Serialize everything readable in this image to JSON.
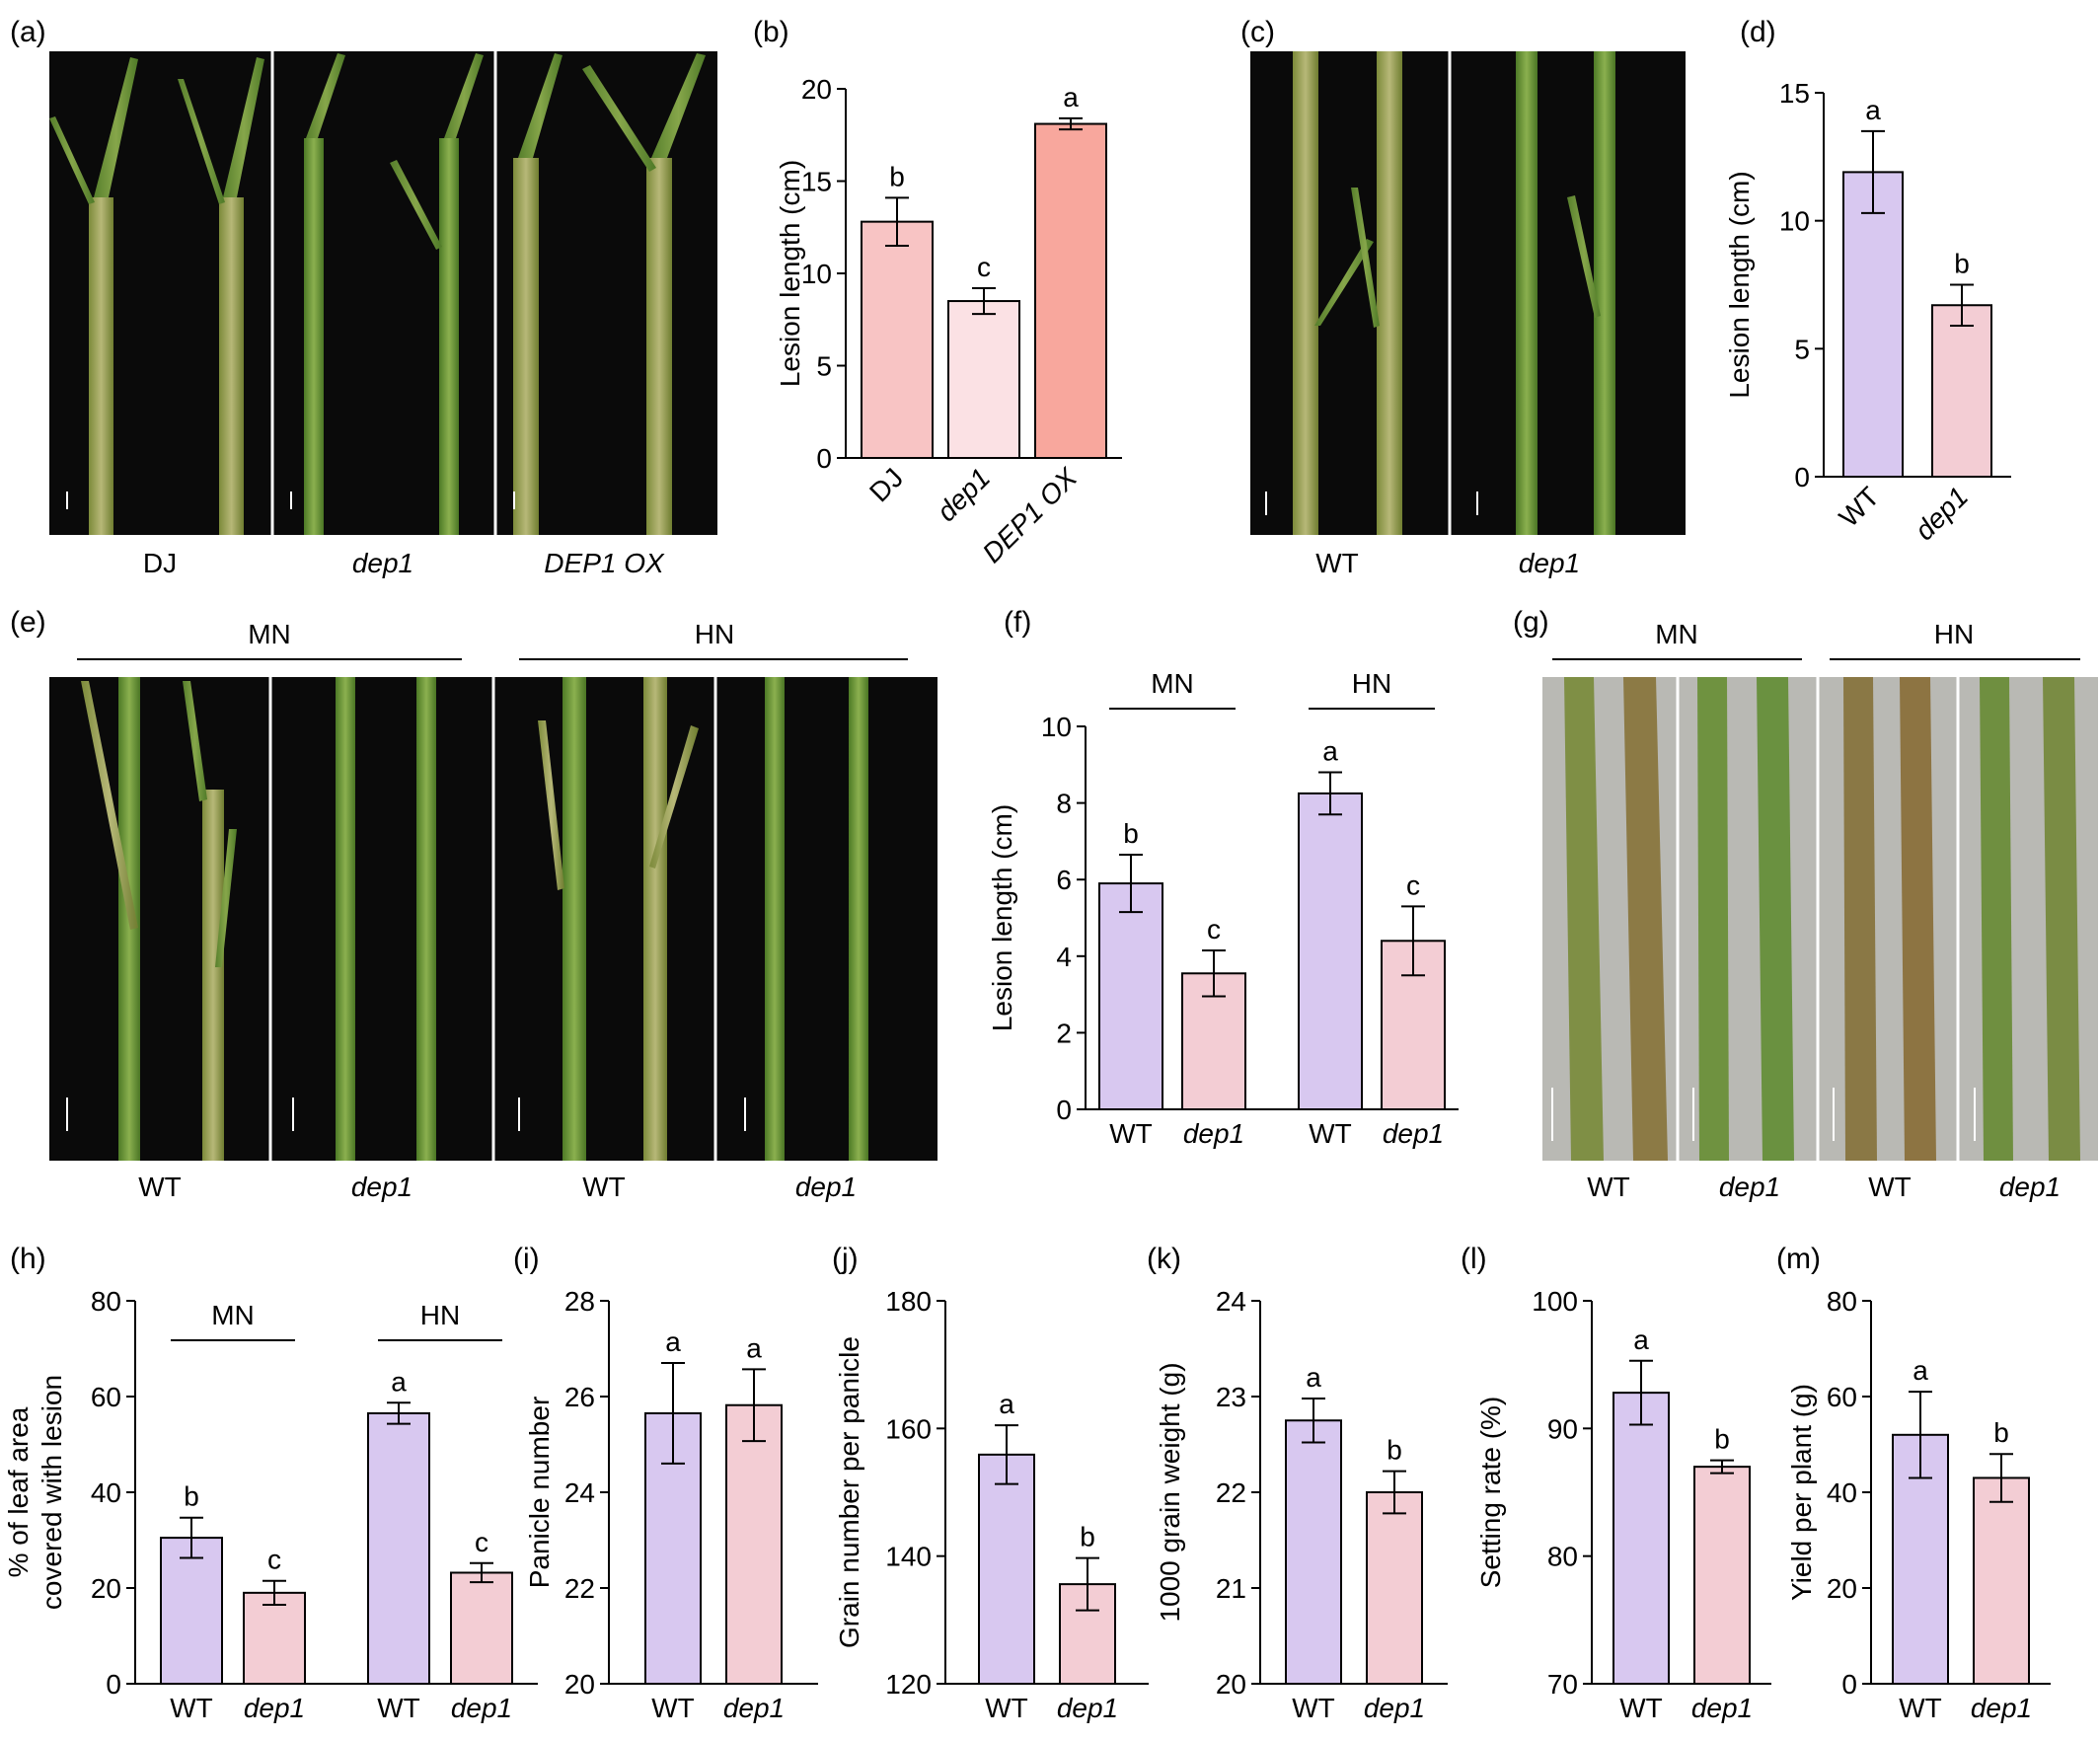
{
  "panels": {
    "a": {
      "label": "(a)",
      "captions": [
        "DJ",
        "dep1",
        "DEP1 OX"
      ]
    },
    "c": {
      "label": "(c)",
      "captions": [
        "WT",
        "dep1"
      ]
    },
    "e": {
      "label": "(e)",
      "groups": [
        "MN",
        "HN"
      ],
      "captions": [
        "WT",
        "dep1",
        "WT",
        "dep1"
      ]
    },
    "g": {
      "label": "(g)",
      "groups": [
        "MN",
        "HN"
      ],
      "captions": [
        "WT",
        "dep1",
        "WT",
        "dep1"
      ]
    }
  },
  "colors": {
    "purple": "#d8c8f0",
    "pink": "#f3cdd4",
    "salmon": "#f8a79d",
    "light_pink": "#fbe1e4",
    "stem_green": "#6e9a3c",
    "photo_dark": "#0a0a0a",
    "leaf_gray": "#b9b9b4"
  },
  "chart_data": [
    {
      "id": "b",
      "label": "(b)",
      "type": "bar",
      "categories": [
        "DJ",
        "dep1",
        "DEP1 OX"
      ],
      "values": [
        12.8,
        8.5,
        18.1
      ],
      "errors": [
        1.3,
        0.7,
        0.3
      ],
      "letters": [
        "b",
        "c",
        "a"
      ],
      "ylabel": "Lesion length (cm)",
      "ylim": [
        0,
        20
      ],
      "yticks": [
        0,
        5,
        10,
        15,
        20
      ],
      "colors": [
        "#f8c4c4",
        "#fbe1e4",
        "#f8a79d"
      ],
      "italic": [
        false,
        true,
        true
      ],
      "rotate_xticks": true
    },
    {
      "id": "d",
      "label": "(d)",
      "type": "bar",
      "categories": [
        "WT",
        "dep1"
      ],
      "values": [
        11.9,
        6.7
      ],
      "errors": [
        1.6,
        0.8
      ],
      "letters": [
        "a",
        "b"
      ],
      "ylabel": "Lesion length (cm)",
      "ylim": [
        0,
        15
      ],
      "yticks": [
        0,
        5,
        10,
        15
      ],
      "colors": [
        "#d8c8f0",
        "#f3cdd4"
      ],
      "italic": [
        false,
        true
      ],
      "rotate_xticks": true
    },
    {
      "id": "f",
      "label": "(f)",
      "type": "bar",
      "categories": [
        "WT",
        "dep1",
        "WT",
        "dep1"
      ],
      "groups": [
        "MN",
        "HN"
      ],
      "values": [
        5.9,
        3.55,
        8.25,
        4.4
      ],
      "errors": [
        0.75,
        0.6,
        0.55,
        0.9
      ],
      "letters": [
        "b",
        "c",
        "a",
        "c"
      ],
      "ylabel": "Lesion length (cm)",
      "ylim": [
        0,
        10
      ],
      "yticks": [
        0,
        2,
        4,
        6,
        8,
        10
      ],
      "colors": [
        "#d8c8f0",
        "#f3cdd4",
        "#d8c8f0",
        "#f3cdd4"
      ],
      "italic": [
        false,
        true,
        false,
        true
      ]
    },
    {
      "id": "h",
      "label": "(h)",
      "type": "bar",
      "categories": [
        "WT",
        "dep1",
        "WT",
        "dep1"
      ],
      "groups": [
        "MN",
        "HN"
      ],
      "values": [
        30.5,
        19.0,
        56.5,
        23.2
      ],
      "errors": [
        4.2,
        2.5,
        2.2,
        2.0
      ],
      "letters": [
        "b",
        "c",
        "a",
        "c"
      ],
      "ylabel": "% of leaf area",
      "ylabel2": "covered with lesion",
      "ylim": [
        0,
        80
      ],
      "yticks": [
        0,
        20,
        40,
        60,
        80
      ],
      "colors": [
        "#d8c8f0",
        "#f3cdd4",
        "#d8c8f0",
        "#f3cdd4"
      ],
      "italic": [
        false,
        true,
        false,
        true
      ]
    },
    {
      "id": "i",
      "label": "(i)",
      "type": "bar",
      "categories": [
        "WT",
        "dep1"
      ],
      "values": [
        25.65,
        25.82
      ],
      "errors": [
        1.05,
        0.75
      ],
      "letters": [
        "a",
        "a"
      ],
      "ylabel": "Panicle number",
      "ylim": [
        20,
        28
      ],
      "yticks": [
        20,
        22,
        24,
        26,
        28
      ],
      "colors": [
        "#d8c8f0",
        "#f3cdd4"
      ],
      "italic": [
        false,
        true
      ]
    },
    {
      "id": "j",
      "label": "(j)",
      "type": "bar",
      "categories": [
        "WT",
        "dep1"
      ],
      "values": [
        155.9,
        135.6
      ],
      "errors": [
        4.6,
        4.1
      ],
      "letters": [
        "a",
        "b"
      ],
      "ylabel": "Grain number per panicle",
      "ylim": [
        120,
        180
      ],
      "yticks": [
        120,
        140,
        160,
        180
      ],
      "colors": [
        "#d8c8f0",
        "#f3cdd4"
      ],
      "italic": [
        false,
        true
      ]
    },
    {
      "id": "k",
      "label": "(k)",
      "type": "bar",
      "categories": [
        "WT",
        "dep1"
      ],
      "values": [
        22.75,
        22.0
      ],
      "errors": [
        0.23,
        0.22
      ],
      "letters": [
        "a",
        "b"
      ],
      "ylabel": "1000 grain weight (g)",
      "ylim": [
        20,
        24
      ],
      "yticks": [
        20,
        21,
        22,
        23,
        24
      ],
      "colors": [
        "#d8c8f0",
        "#f3cdd4"
      ],
      "italic": [
        false,
        true
      ]
    },
    {
      "id": "l",
      "label": "(l)",
      "type": "bar",
      "categories": [
        "WT",
        "dep1"
      ],
      "values": [
        92.8,
        87.0
      ],
      "errors": [
        2.5,
        0.5
      ],
      "letters": [
        "a",
        "b"
      ],
      "ylabel": "Setting rate (%)",
      "ylim": [
        70,
        100
      ],
      "yticks": [
        70,
        80,
        90,
        100
      ],
      "colors": [
        "#d8c8f0",
        "#f3cdd4"
      ],
      "italic": [
        false,
        true
      ]
    },
    {
      "id": "m",
      "label": "(m)",
      "type": "bar",
      "categories": [
        "WT",
        "dep1"
      ],
      "values": [
        52.0,
        43.0
      ],
      "errors": [
        9.0,
        5.0
      ],
      "letters": [
        "a",
        "b"
      ],
      "ylabel": "Yield per plant (g)",
      "ylim": [
        0,
        80
      ],
      "yticks": [
        0,
        20,
        40,
        60,
        80
      ],
      "colors": [
        "#d8c8f0",
        "#f3cdd4"
      ],
      "italic": [
        false,
        true
      ]
    }
  ]
}
